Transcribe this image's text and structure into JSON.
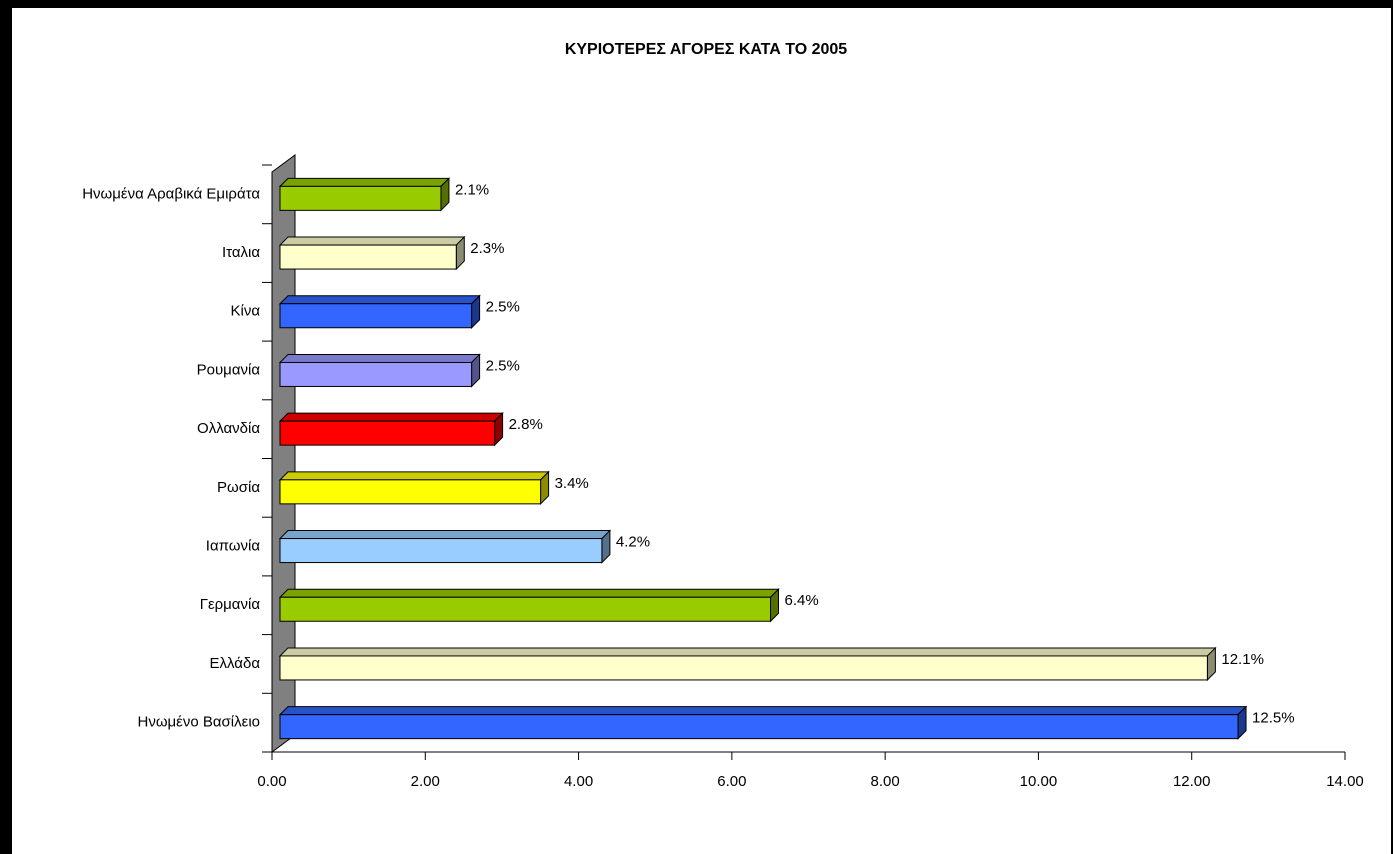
{
  "chart_data": {
    "type": "bar",
    "orientation": "horizontal",
    "title": "ΚΥΡΙΟΤΕΡΕΣ ΑΓΟΡΕΣ ΚΑΤΑ ΤΟ 2005",
    "categories": [
      "Ηνωμένα Αραβικά Εμιράτα",
      "Ιταλια",
      "Κίνα",
      "Ρουμανία",
      "Ολλανδία",
      "Ρωσία",
      "Ιαπωνία",
      "Γερμανία",
      "Ελλάδα",
      "Ηνωμένο Βασίλειο"
    ],
    "values": [
      2.1,
      2.3,
      2.5,
      2.5,
      2.8,
      3.4,
      4.2,
      6.4,
      12.1,
      12.5
    ],
    "value_labels": [
      "2.1%",
      "2.3%",
      "2.5%",
      "2.5%",
      "2.8%",
      "3.4%",
      "4.2%",
      "6.4%",
      "12.1%",
      "12.5%"
    ],
    "colors": [
      "#99cc00",
      "#ffffcc",
      "#3366ff",
      "#9999ff",
      "#ff0000",
      "#ffff00",
      "#99ccff",
      "#99cc00",
      "#ffffcc",
      "#3366ff"
    ],
    "xlim": [
      0,
      14
    ],
    "xticks": [
      {
        "value": 0,
        "label": "0.00"
      },
      {
        "value": 2,
        "label": "2.00"
      },
      {
        "value": 4,
        "label": "4.00"
      },
      {
        "value": 6,
        "label": "6.00"
      },
      {
        "value": 8,
        "label": "8.00"
      },
      {
        "value": 10,
        "label": "10.00"
      },
      {
        "value": 12,
        "label": "12.00"
      },
      {
        "value": 14,
        "label": "14.00"
      }
    ]
  }
}
